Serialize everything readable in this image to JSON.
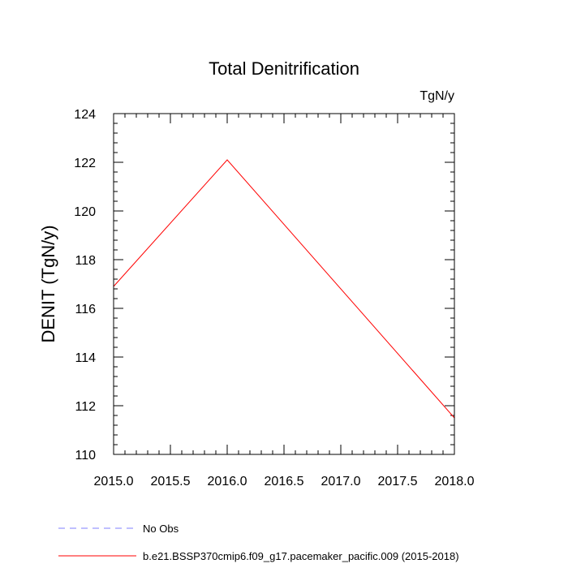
{
  "chart_data": {
    "type": "line",
    "title": "Total Denitrification",
    "units_label": "TgN/y",
    "ylabel": "DENIT  (TgN/y)",
    "xlabel": "",
    "xlim": [
      2015.0,
      2018.0
    ],
    "ylim": [
      110,
      124
    ],
    "xticks": [
      2015.0,
      2015.5,
      2016.0,
      2016.5,
      2017.0,
      2017.5,
      2018.0
    ],
    "xtick_labels": [
      "2015.0",
      "2015.5",
      "2016.0",
      "2016.5",
      "2017.0",
      "2017.5",
      "2018.0"
    ],
    "yticks": [
      110,
      112,
      114,
      116,
      118,
      120,
      122,
      124
    ],
    "ytick_labels": [
      "110",
      "112",
      "114",
      "116",
      "118",
      "120",
      "122",
      "124"
    ],
    "grid": false,
    "legend_position": "bottom",
    "series": [
      {
        "name": "No Obs",
        "color": "#7f7fff",
        "style": "dashed",
        "x": [],
        "y": []
      },
      {
        "name": "b.e21.BSSP370cmip6.f09_g17.pacemaker_pacific.009 (2015-2018)",
        "color": "#ff0000",
        "style": "solid",
        "x": [
          2015.0,
          2016.0,
          2018.0
        ],
        "y": [
          116.9,
          122.1,
          111.5
        ]
      }
    ]
  }
}
